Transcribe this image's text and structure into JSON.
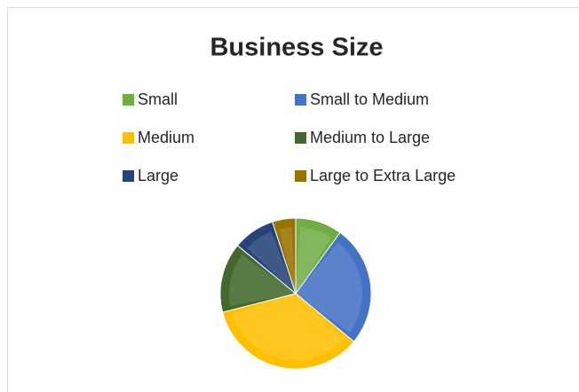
{
  "chart_data": {
    "type": "pie",
    "title": "Business Size",
    "categories": [
      "Small",
      "Small to Medium",
      "Medium",
      "Medium to Large",
      "Large",
      "Large to Extra Large"
    ],
    "values": [
      10,
      26,
      35,
      15,
      9,
      5
    ],
    "colors": [
      "#70ad47",
      "#4472c4",
      "#ffc000",
      "#43682b",
      "#264478",
      "#997300"
    ],
    "legend": "top"
  }
}
